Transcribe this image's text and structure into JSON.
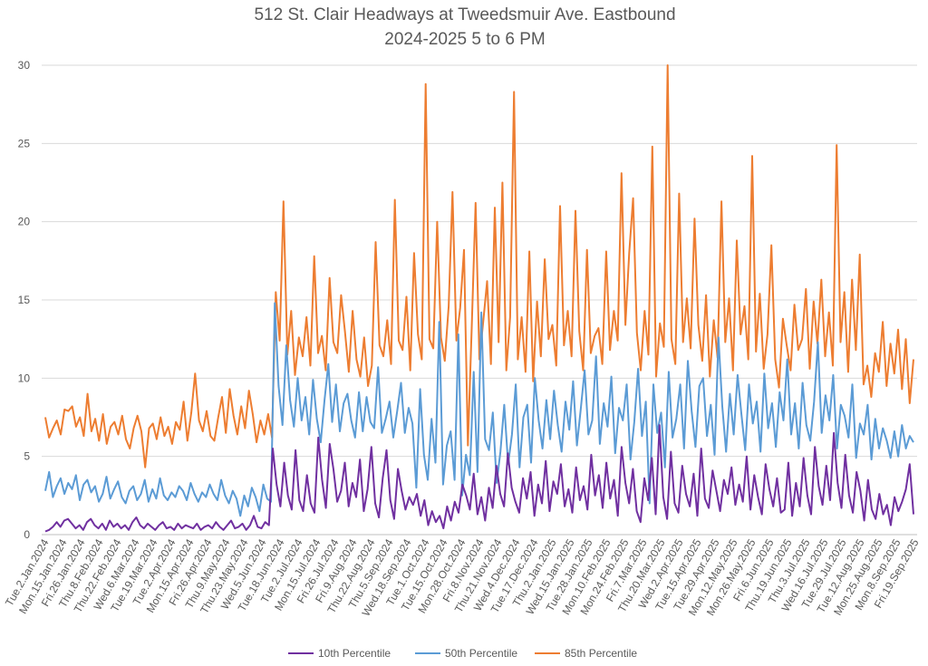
{
  "chart_data": {
    "type": "line",
    "title": "512 St. Clair Headways at Tweedsmuir Ave. Eastbound",
    "subtitle": "2024-2025 5 to 6 PM",
    "xlabel": "",
    "ylabel": "",
    "ylim": [
      0,
      30
    ],
    "yticks": [
      0,
      5,
      10,
      15,
      20,
      25,
      30
    ],
    "grid": true,
    "legend": "bottom",
    "x_tick_labels": [
      "Tue.2.Jan.2024",
      "Mon.15.Jan.2024",
      "Fri.26.Jan.2024",
      "Thu.8.Feb.2024",
      "Thu.22.Feb.2024",
      "Wed.6.Mar.2024",
      "Tue.19.Mar.2024",
      "Tue.2.Apr.2024",
      "Mon.15.Apr.2024",
      "Fri.26.Apr.2024",
      "Thu.9.May.2024",
      "Thu.23.May.2024",
      "Wed.5.Jun.2024",
      "Tue.18.Jun.2024",
      "Tue.2.Jul.2024",
      "Mon.15.Jul.2024",
      "Fri.26.Jul.2024",
      "Fri.9.Aug.2024",
      "Thu.22.Aug.2024",
      "Thu.5.Sep.2024",
      "Wed.18.Sep.2024",
      "Tue.1.Oct.2024",
      "Tue.15.Oct.2024",
      "Mon.28.Oct.2024",
      "Fri.8.Nov.2024",
      "Thu.21.Nov.2024",
      "Wed.4.Dec.2024",
      "Tue.17.Dec.2024",
      "Thu.2.Jan.2025",
      "Wed.15.Jan.2025",
      "Tue.28.Jan.2025",
      "Mon.10.Feb.2025",
      "Mon.24.Feb.2025",
      "Fri.7.Mar.2025",
      "Thu.20.Mar.2025",
      "Wed.2.Apr.2025",
      "Tue.15.Apr.2025",
      "Tue.29.Apr.2025",
      "Mon.12.May.2025",
      "Mon.26.May.2025",
      "Fri.6.Jun.2025",
      "Thu.19.Jun.2025",
      "Thu.3.Jul.2025",
      "Wed.16.Jul.2025",
      "Tue.29.Jul.2025",
      "Tue.12.Aug.2025",
      "Mon.25.Aug.2025",
      "Mon.8.Sep.2025",
      "Fri.19.Sep.2025"
    ],
    "series": [
      {
        "name": "10th Percentile",
        "color": "#7030a0",
        "values": [
          0.2,
          0.3,
          0.5,
          0.8,
          0.5,
          0.9,
          1.0,
          0.7,
          0.4,
          0.6,
          0.3,
          0.8,
          1.0,
          0.6,
          0.4,
          0.7,
          0.3,
          0.9,
          0.5,
          0.7,
          0.4,
          0.6,
          0.3,
          0.8,
          1.1,
          0.6,
          0.4,
          0.7,
          0.5,
          0.3,
          0.6,
          0.8,
          0.4,
          0.5,
          0.3,
          0.7,
          0.4,
          0.6,
          0.5,
          0.4,
          0.7,
          0.3,
          0.5,
          0.6,
          0.4,
          0.8,
          0.5,
          0.3,
          0.6,
          0.9,
          0.4,
          0.5,
          0.7,
          0.3,
          0.6,
          1.2,
          0.5,
          0.4,
          0.8,
          0.6,
          5.5,
          3.2,
          1.8,
          4.6,
          2.5,
          1.6,
          5.4,
          2.2,
          1.5,
          3.8,
          2.0,
          1.4,
          6.2,
          3.5,
          1.7,
          5.8,
          4.2,
          2.1,
          2.8,
          4.6,
          1.8,
          3.3,
          2.4,
          4.8,
          1.5,
          2.9,
          5.6,
          2.0,
          1.1,
          3.6,
          5.4,
          2.2,
          1.0,
          4.2,
          2.8,
          1.6,
          2.4,
          1.9,
          2.6,
          1.2,
          2.2,
          0.6,
          1.5,
          0.8,
          1.2,
          0.4,
          1.8,
          0.9,
          2.1,
          1.4,
          3.2,
          2.5,
          1.6,
          3.9,
          1.3,
          2.4,
          0.9,
          3.0,
          1.7,
          4.4,
          2.6,
          1.8,
          5.2,
          3.0,
          2.1,
          1.4,
          3.6,
          2.3,
          4.0,
          1.2,
          3.2,
          2.0,
          4.7,
          1.5,
          3.4,
          2.6,
          4.5,
          1.8,
          2.9,
          1.4,
          4.3,
          2.2,
          3.1,
          1.6,
          5.1,
          2.5,
          3.8,
          1.7,
          4.6,
          2.3,
          3.5,
          1.2,
          5.6,
          3.3,
          2.0,
          4.2,
          1.5,
          0.8,
          3.6,
          2.2,
          4.9,
          1.3,
          7.0,
          2.4,
          1.0,
          5.3,
          2.0,
          1.4,
          4.4,
          2.6,
          1.8,
          3.9,
          1.2,
          5.5,
          2.3,
          1.7,
          4.1,
          2.8,
          1.5,
          3.5,
          2.6,
          4.3,
          1.9,
          3.2,
          2.1,
          5.0,
          1.6,
          3.8,
          2.4,
          1.3,
          4.5,
          2.9,
          1.8,
          3.6,
          1.4,
          1.6,
          4.6,
          1.2,
          3.3,
          1.8,
          4.9,
          2.5,
          1.3,
          5.6,
          3.1,
          1.9,
          4.4,
          2.2,
          6.5,
          3.3,
          1.7,
          5.1,
          2.5,
          1.4,
          4.0,
          2.8,
          0.9,
          3.5,
          1.6,
          1.0,
          2.6,
          1.3,
          1.9,
          0.6,
          2.4,
          1.5,
          2.1,
          2.9,
          4.5,
          1.3
        ]
      },
      {
        "name": "50th Percentile",
        "color": "#5b9bd5",
        "values": [
          2.8,
          4.0,
          2.4,
          3.1,
          3.6,
          2.6,
          3.3,
          2.9,
          3.8,
          2.2,
          3.2,
          3.5,
          2.7,
          3.1,
          2.1,
          2.6,
          3.7,
          2.3,
          2.9,
          3.4,
          2.4,
          2.0,
          2.8,
          3.1,
          2.2,
          2.6,
          3.5,
          2.1,
          2.9,
          2.3,
          3.6,
          2.5,
          2.2,
          2.7,
          2.4,
          3.1,
          2.8,
          2.2,
          3.3,
          2.6,
          2.1,
          2.7,
          2.4,
          3.2,
          2.6,
          2.2,
          3.5,
          2.5,
          2.0,
          2.8,
          2.3,
          1.2,
          2.5,
          1.8,
          3.0,
          2.4,
          1.5,
          3.2,
          2.3,
          2.1,
          14.8,
          9.5,
          7.0,
          12.1,
          8.6,
          6.9,
          10.0,
          7.3,
          8.8,
          6.4,
          9.9,
          7.4,
          5.9,
          8.6,
          10.9,
          7.2,
          9.6,
          6.6,
          8.4,
          9.0,
          7.3,
          6.2,
          9.1,
          6.6,
          8.8,
          7.2,
          6.8,
          10.7,
          6.5,
          7.4,
          8.5,
          6.2,
          7.9,
          9.7,
          6.5,
          8.1,
          7.1,
          3.0,
          9.3,
          5.1,
          3.5,
          7.4,
          4.6,
          13.6,
          3.2,
          5.7,
          6.6,
          3.5,
          12.8,
          2.5,
          5.1,
          3.8,
          10.4,
          4.0,
          14.2,
          6.1,
          5.4,
          7.8,
          3.3,
          5.3,
          8.3,
          4.5,
          6.4,
          9.6,
          4.3,
          7.5,
          8.3,
          4.6,
          10.0,
          7.3,
          5.5,
          8.6,
          6.1,
          9.2,
          7.0,
          5.3,
          8.5,
          6.7,
          9.8,
          5.7,
          8.0,
          10.5,
          6.4,
          7.3,
          11.4,
          5.8,
          8.4,
          6.9,
          10.1,
          5.2,
          8.1,
          7.3,
          9.6,
          4.8,
          7.2,
          10.6,
          6.3,
          8.5,
          2.0,
          9.6,
          6.5,
          7.8,
          4.3,
          10.4,
          6.2,
          7.4,
          9.6,
          5.5,
          11.1,
          7.9,
          5.6,
          9.5,
          10.0,
          6.3,
          8.3,
          5.1,
          12.6,
          8.2,
          5.3,
          9.0,
          6.4,
          10.2,
          7.7,
          5.4,
          9.6,
          7.1,
          8.5,
          5.3,
          10.3,
          6.8,
          8.4,
          5.6,
          9.1,
          7.3,
          11.2,
          6.4,
          8.4,
          5.5,
          9.7,
          7.0,
          6.0,
          8.5,
          12.3,
          6.5,
          8.9,
          7.3,
          10.2,
          5.5,
          8.3,
          7.6,
          6.2,
          9.6,
          4.9,
          7.1,
          6.4,
          8.3,
          4.8,
          7.4,
          5.5,
          6.8,
          6.0,
          4.9,
          6.6,
          5.0,
          7.0,
          5.5,
          6.3,
          5.9
        ]
      },
      {
        "name": "85th Percentile",
        "color": "#ed7d31",
        "values": [
          7.5,
          6.2,
          6.8,
          7.3,
          6.4,
          8.0,
          7.9,
          8.2,
          6.9,
          7.5,
          6.3,
          9.0,
          6.6,
          7.4,
          6.0,
          7.7,
          5.8,
          6.9,
          7.2,
          6.4,
          7.6,
          6.1,
          5.5,
          6.8,
          7.6,
          6.6,
          4.3,
          6.8,
          7.1,
          6.1,
          7.5,
          6.3,
          6.9,
          5.8,
          7.2,
          6.7,
          8.5,
          6.0,
          7.8,
          10.3,
          7.3,
          6.6,
          7.9,
          6.3,
          6.0,
          7.5,
          8.8,
          6.5,
          9.3,
          7.6,
          6.4,
          8.2,
          6.8,
          9.2,
          7.7,
          5.9,
          7.3,
          6.4,
          7.7,
          6.2,
          15.5,
          12.4,
          21.3,
          11.5,
          14.3,
          10.2,
          12.6,
          11.4,
          13.9,
          10.8,
          17.8,
          11.6,
          12.7,
          10.5,
          16.4,
          12.3,
          11.6,
          15.3,
          13.0,
          10.4,
          14.3,
          11.2,
          10.1,
          12.6,
          9.5,
          10.8,
          18.7,
          12.1,
          11.4,
          13.7,
          10.9,
          21.4,
          12.4,
          11.8,
          15.2,
          10.5,
          18.0,
          12.8,
          11.2,
          28.8,
          12.5,
          11.9,
          20.0,
          12.6,
          11.1,
          14.6,
          21.9,
          12.4,
          14.5,
          18.2,
          5.7,
          13.2,
          21.2,
          11.2,
          13.6,
          16.2,
          10.9,
          20.9,
          12.3,
          22.5,
          10.5,
          13.9,
          28.3,
          11.2,
          13.9,
          10.4,
          18.1,
          9.8,
          14.9,
          11.4,
          17.6,
          12.5,
          13.4,
          10.8,
          21.0,
          12.1,
          14.3,
          11.4,
          20.7,
          13.0,
          10.5,
          18.2,
          11.6,
          12.7,
          13.2,
          10.9,
          18.1,
          11.8,
          14.3,
          12.4,
          23.1,
          13.4,
          18.0,
          21.5,
          12.9,
          10.5,
          14.3,
          11.5,
          24.8,
          10.1,
          13.5,
          12.0,
          30.0,
          12.5,
          10.9,
          21.8,
          12.3,
          15.1,
          11.9,
          20.2,
          13.4,
          11.1,
          15.3,
          10.1,
          13.7,
          11.3,
          21.3,
          12.3,
          15.1,
          10.5,
          18.8,
          12.8,
          14.6,
          11.2,
          24.2,
          11.7,
          15.4,
          10.6,
          12.8,
          18.5,
          11.2,
          9.4,
          13.8,
          12.1,
          10.5,
          14.7,
          11.8,
          12.5,
          15.7,
          10.6,
          14.9,
          12.2,
          16.3,
          11.4,
          14.2,
          10.8,
          24.9,
          12.3,
          15.5,
          10.4,
          16.3,
          11.8,
          17.9,
          9.6,
          10.8,
          8.8,
          11.6,
          10.4,
          13.6,
          9.5,
          12.2,
          10.3,
          13.1,
          9.3,
          12.5,
          8.4,
          11.2
        ]
      }
    ]
  }
}
